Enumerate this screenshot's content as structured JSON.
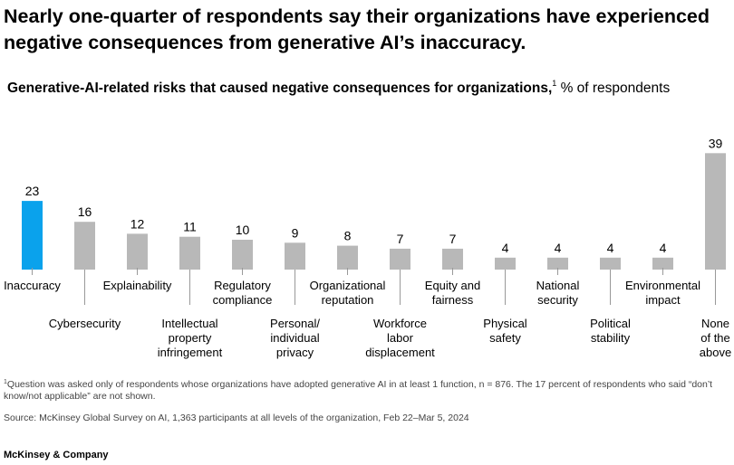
{
  "headline": "Nearly one-quarter of respondents say their organizations have experienced negative consequences from generative AI’s inaccuracy.",
  "subtitle": {
    "bold": "Generative-AI-related risks that caused negative consequences for organizations,",
    "footnote_marker": "1",
    "unit": " % of respondents"
  },
  "colors": {
    "highlight": "#0aa2ec",
    "bar": "#b8b8b8",
    "divider": "#999999"
  },
  "chart_data": {
    "type": "bar",
    "title": "Generative-AI-related risks that caused negative consequences for organizations",
    "ylabel": "% of respondents",
    "ylim": [
      0,
      40
    ],
    "categories": [
      [
        "Inaccuracy"
      ],
      [
        "Cybersecurity"
      ],
      [
        "Explainability"
      ],
      [
        "Intellectual",
        "property",
        "infringement"
      ],
      [
        "Regulatory",
        "compliance"
      ],
      [
        "Personal/",
        "individual",
        "privacy"
      ],
      [
        "Organizational",
        "reputation"
      ],
      [
        "Workforce",
        "labor",
        "displacement"
      ],
      [
        "Equity and",
        "fairness"
      ],
      [
        "Physical",
        "safety"
      ],
      [
        "National",
        "security"
      ],
      [
        "Political",
        "stability"
      ],
      [
        "Environmental",
        "impact"
      ],
      [
        "None",
        "of the",
        "above"
      ]
    ],
    "values": [
      23,
      16,
      12,
      11,
      10,
      9,
      8,
      7,
      7,
      4,
      4,
      4,
      4,
      39
    ],
    "highlight_index": 0,
    "data_labels": true,
    "grid": false
  },
  "footnote": {
    "marker": "1",
    "text": "Question was asked only of respondents whose organizations have adopted generative AI in at least 1 function, n = 876. The 17 percent of respondents who said “don’t know/not applicable” are not shown."
  },
  "source": "Source: McKinsey Global Survey on AI, 1,363 participants at all levels of the organization, Feb 22–Mar 5, 2024",
  "brand": "McKinsey & Company"
}
